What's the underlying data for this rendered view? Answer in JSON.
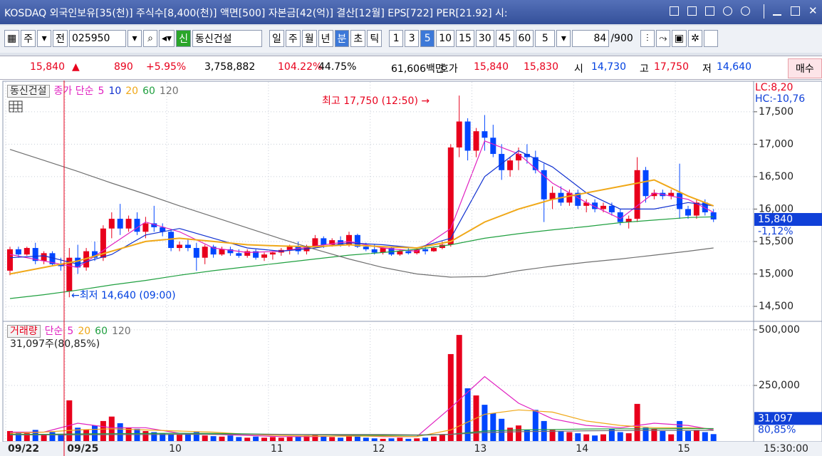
{
  "header": {
    "title": "KOSDAQ 외국인보유[35(천)] 주식수[8,400(천)] 액면[500] 자본금[42(억)] 결산[12월] EPS[722] PER[21.92] 시:"
  },
  "toolbar": {
    "period_type": "주",
    "range": "전",
    "code": "025950",
    "credit": "신",
    "name": "동신건설",
    "periods": [
      "일",
      "주",
      "월",
      "년",
      "분",
      "초",
      "틱"
    ],
    "minutes": [
      "1",
      "3",
      "5",
      "10",
      "15",
      "30",
      "45",
      "60"
    ],
    "select": "5",
    "count": "84",
    "max": "/900"
  },
  "info": {
    "price": "15,840",
    "arrow": "▲",
    "change": "890",
    "change_pct": "+5.95%",
    "volume": "3,758,882",
    "volume_ratio": "104.22%",
    "turnover": "44.75%",
    "amount": "61,606백만",
    "quote_label": "호가",
    "ask": "15,840",
    "bid": "15,830",
    "open_label": "시",
    "open": "14,730",
    "high_label": "고",
    "high": "17,750",
    "low_label": "저",
    "low": "14,640",
    "buy": "매수"
  },
  "chart_data": [
    {
      "type": "candlestick",
      "title": "동신건설",
      "ma_label": "종가 단순",
      "up_color": "#e8001c",
      "down_color": "#0046ff",
      "grid": true,
      "open": [
        15050,
        15380,
        15300,
        15400,
        15200,
        15320,
        15150,
        14730,
        15250,
        15100,
        15350,
        15250,
        15700,
        15850,
        15700,
        15850,
        15650,
        15780,
        15720,
        15650,
        15400,
        15450,
        15400,
        15250,
        15420,
        15300,
        15380,
        15320,
        15280,
        15350,
        15250,
        15300,
        15330,
        15370,
        15420,
        15350,
        15430,
        15550,
        15450,
        15520,
        15450,
        15600,
        15420,
        15380,
        15330,
        15400,
        15300,
        15350,
        15320,
        15380,
        15350,
        15400,
        15450,
        16950,
        17350,
        16900,
        17200,
        17100,
        16850,
        16600,
        16750,
        16850,
        16800,
        16600,
        16150,
        16250,
        16100,
        16250,
        16050,
        16100,
        16000,
        16050,
        15950,
        15800,
        15850,
        16600,
        16200,
        16250,
        16200,
        16250,
        16000,
        15900,
        16100,
        15950
      ],
      "high": [
        15420,
        15420,
        15420,
        15480,
        15350,
        15350,
        15250,
        15400,
        15450,
        15400,
        15500,
        15750,
        15950,
        16080,
        15900,
        15950,
        15880,
        16050,
        15780,
        15680,
        15500,
        15550,
        15480,
        15450,
        15450,
        15420,
        15420,
        15380,
        15380,
        15380,
        15330,
        15350,
        15400,
        15450,
        15500,
        15450,
        15600,
        15580,
        15550,
        15580,
        15650,
        15620,
        15480,
        15450,
        15420,
        15420,
        15380,
        15400,
        15400,
        15420,
        15420,
        15500,
        17000,
        17750,
        17400,
        17250,
        17450,
        17300,
        17000,
        16800,
        16950,
        17000,
        16900,
        16700,
        16350,
        16350,
        16300,
        16300,
        16150,
        16150,
        16100,
        16100,
        16000,
        15900,
        16800,
        16650,
        16300,
        16300,
        16300,
        16700,
        16050,
        16150,
        16150,
        16000
      ],
      "low": [
        14980,
        15250,
        15280,
        15150,
        15150,
        15120,
        15050,
        14640,
        15000,
        15050,
        15200,
        15200,
        15550,
        15600,
        15650,
        15600,
        15550,
        15650,
        15580,
        15350,
        15350,
        15350,
        15050,
        15150,
        15250,
        15280,
        15280,
        15250,
        15250,
        15220,
        15200,
        15220,
        15280,
        15300,
        15300,
        15300,
        15400,
        15400,
        15420,
        15420,
        15420,
        15400,
        15350,
        15300,
        15300,
        15280,
        15280,
        15300,
        15300,
        15300,
        15340,
        15380,
        15420,
        16800,
        16750,
        16800,
        16900,
        16800,
        16450,
        16500,
        16600,
        16700,
        16550,
        15800,
        16000,
        16050,
        16050,
        16000,
        15950,
        15950,
        15950,
        15900,
        15750,
        15700,
        15800,
        16100,
        16150,
        16150,
        16150,
        15850,
        15850,
        15850,
        15900,
        15800
      ],
      "close": [
        15380,
        15300,
        15400,
        15200,
        15320,
        15150,
        15120,
        15250,
        15100,
        15350,
        15250,
        15700,
        15850,
        15700,
        15850,
        15650,
        15780,
        15720,
        15650,
        15400,
        15450,
        15400,
        15250,
        15420,
        15300,
        15380,
        15320,
        15280,
        15350,
        15250,
        15300,
        15330,
        15370,
        15420,
        15350,
        15430,
        15550,
        15450,
        15520,
        15450,
        15600,
        15420,
        15380,
        15330,
        15400,
        15300,
        15350,
        15320,
        15380,
        15350,
        15400,
        15450,
        16950,
        17350,
        16900,
        17200,
        17100,
        16850,
        16600,
        16750,
        16850,
        16800,
        16600,
        16150,
        16250,
        16100,
        16250,
        16050,
        16100,
        16000,
        16050,
        15950,
        15800,
        15850,
        16600,
        16200,
        16250,
        16200,
        16250,
        16000,
        15900,
        16100,
        15950,
        15840
      ],
      "ylim": [
        14280,
        17960
      ],
      "yticks": [
        {
          "value": 14500,
          "label": "14,500"
        },
        {
          "value": 15000,
          "label": "15,000"
        },
        {
          "value": 15500,
          "label": "15,500"
        },
        {
          "value": 16000,
          "label": "16,000"
        },
        {
          "value": 16500,
          "label": "16,500"
        },
        {
          "value": 17000,
          "label": "17,000"
        },
        {
          "value": 17500,
          "label": "17,500"
        }
      ],
      "series": [
        {
          "name": "5",
          "color": "#e020c0",
          "x": [
            0,
            4,
            8,
            12,
            16,
            20,
            24,
            28,
            32,
            36,
            40,
            44,
            48,
            52,
            56,
            60,
            64,
            68,
            72,
            76,
            80,
            83
          ],
          "values": [
            15300,
            15200,
            15100,
            15450,
            15800,
            15650,
            15400,
            15330,
            15350,
            15430,
            15500,
            15400,
            15350,
            15700,
            17050,
            16850,
            16400,
            16100,
            15850,
            16250,
            16150,
            15950
          ]
        },
        {
          "name": "10",
          "color": "#1030d0",
          "x": [
            0,
            4,
            8,
            12,
            16,
            20,
            24,
            28,
            32,
            36,
            40,
            44,
            48,
            52,
            56,
            60,
            64,
            68,
            72,
            76,
            80,
            83
          ],
          "values": [
            15250,
            15280,
            15150,
            15300,
            15600,
            15700,
            15550,
            15400,
            15350,
            15400,
            15480,
            15450,
            15400,
            15550,
            16500,
            16900,
            16650,
            16250,
            16000,
            16000,
            16100,
            16050
          ]
        },
        {
          "name": "20",
          "color": "#f0a818",
          "x": [
            0,
            4,
            8,
            12,
            16,
            20,
            24,
            28,
            32,
            36,
            40,
            44,
            48,
            52,
            56,
            60,
            64,
            68,
            72,
            76,
            80,
            83
          ],
          "values": [
            15000,
            15100,
            15200,
            15350,
            15500,
            15550,
            15500,
            15450,
            15430,
            15420,
            15450,
            15420,
            15400,
            15500,
            15800,
            16000,
            16150,
            16250,
            16350,
            16450,
            16200,
            16050
          ]
        },
        {
          "name": "60",
          "color": "#20a040",
          "x": [
            0,
            4,
            8,
            12,
            16,
            20,
            24,
            28,
            32,
            36,
            40,
            44,
            48,
            52,
            56,
            60,
            64,
            68,
            72,
            76,
            80,
            83
          ],
          "values": [
            14620,
            14680,
            14750,
            14830,
            14900,
            14980,
            15050,
            15110,
            15170,
            15230,
            15290,
            15330,
            15380,
            15450,
            15550,
            15620,
            15680,
            15730,
            15790,
            15830,
            15870,
            15880
          ]
        },
        {
          "name": "120",
          "color": "#707070",
          "x": [
            0,
            4,
            8,
            12,
            16,
            20,
            24,
            28,
            32,
            36,
            40,
            44,
            48,
            52,
            56,
            60,
            64,
            68,
            72,
            76,
            80,
            83
          ],
          "values": [
            16920,
            16750,
            16580,
            16400,
            16230,
            16050,
            15880,
            15710,
            15540,
            15380,
            15230,
            15100,
            15000,
            14950,
            14960,
            15050,
            15120,
            15180,
            15230,
            15290,
            15350,
            15400
          ]
        }
      ],
      "annotations": [
        {
          "text": "최고 17,750 (12:50) →",
          "color": "#e8001c"
        },
        {
          "text": "←최저 14,640 (09:00)",
          "color": "#0040e0"
        }
      ],
      "last_price": {
        "value": 15840,
        "label": "15,840"
      },
      "last_change": "-1,12%",
      "lc": "LC:8,20",
      "hc": "HC:-10,76"
    },
    {
      "type": "bar",
      "title": "거래량",
      "ma_label": "단순",
      "summary": "31,097주(80,85%)",
      "categories": [
        "09/22",
        null,
        null,
        null,
        null,
        null,
        null,
        "09/25",
        null,
        null,
        null,
        null,
        null,
        null,
        null,
        null,
        null,
        null,
        null,
        "10",
        null,
        null,
        null,
        null,
        null,
        null,
        null,
        null,
        null,
        null,
        null,
        "11",
        null,
        null,
        null,
        null,
        null,
        null,
        null,
        null,
        null,
        null,
        null,
        "12",
        null,
        null,
        null,
        null,
        null,
        null,
        null,
        null,
        null,
        null,
        null,
        "13",
        null,
        null,
        null,
        null,
        null,
        null,
        null,
        null,
        null,
        null,
        null,
        "14",
        null,
        null,
        null,
        null,
        null,
        null,
        null,
        null,
        null,
        null,
        null,
        "15",
        null,
        null,
        null,
        null
      ],
      "values": [
        45000,
        40000,
        35000,
        50000,
        30000,
        40000,
        30000,
        183000,
        60000,
        50000,
        70000,
        90000,
        110000,
        80000,
        60000,
        55000,
        45000,
        40000,
        35000,
        30000,
        28000,
        35000,
        40000,
        25000,
        22000,
        20000,
        25000,
        18000,
        15000,
        20000,
        15000,
        18000,
        15000,
        18000,
        20000,
        25000,
        30000,
        20000,
        18000,
        15000,
        25000,
        20000,
        15000,
        12000,
        10000,
        12000,
        15000,
        10000,
        12000,
        15000,
        20000,
        30000,
        391000,
        477000,
        237000,
        205000,
        163000,
        125000,
        100000,
        60000,
        70000,
        50000,
        140000,
        90000,
        50000,
        45000,
        40000,
        35000,
        30000,
        25000,
        30000,
        55000,
        40000,
        35000,
        167000,
        60000,
        55000,
        45000,
        30000,
        90000,
        45000,
        50000,
        40000,
        31097
      ],
      "ylim": [
        0,
        535000
      ],
      "yticks": [
        {
          "value": 250000,
          "label": "250,000"
        },
        {
          "value": 500000,
          "label": "500,000"
        }
      ],
      "series": [
        {
          "name": "5",
          "color": "#e020c0",
          "x": [
            0,
            4,
            8,
            12,
            16,
            20,
            24,
            28,
            32,
            36,
            40,
            44,
            48,
            52,
            56,
            60,
            64,
            68,
            72,
            76,
            80,
            83
          ],
          "values": [
            40000,
            40000,
            80000,
            60000,
            60000,
            35000,
            30000,
            25000,
            20000,
            20000,
            25000,
            20000,
            20000,
            150000,
            290000,
            170000,
            100000,
            70000,
            60000,
            80000,
            70000,
            50000
          ]
        },
        {
          "name": "20",
          "color": "#f0a818",
          "x": [
            0,
            4,
            8,
            12,
            16,
            20,
            24,
            28,
            32,
            36,
            40,
            44,
            48,
            52,
            56,
            60,
            64,
            68,
            72,
            76,
            80,
            83
          ],
          "values": [
            35000,
            40000,
            50000,
            55000,
            50000,
            45000,
            40000,
            30000,
            25000,
            22000,
            22000,
            22000,
            20000,
            50000,
            120000,
            140000,
            130000,
            90000,
            70000,
            60000,
            60000,
            55000
          ]
        },
        {
          "name": "60",
          "color": "#20a040",
          "x": [
            0,
            4,
            8,
            12,
            16,
            20,
            24,
            28,
            32,
            36,
            40,
            44,
            48,
            52,
            56,
            60,
            64,
            68,
            72,
            76,
            80,
            83
          ],
          "values": [
            30000,
            30000,
            32000,
            33000,
            34000,
            35000,
            34000,
            32000,
            30000,
            28000,
            27000,
            26000,
            26000,
            30000,
            45000,
            50000,
            52000,
            54000,
            55000,
            55000,
            56000,
            56000
          ]
        },
        {
          "name": "120",
          "color": "#707070",
          "x": [
            0,
            4,
            8,
            12,
            16,
            20,
            24,
            28,
            32,
            36,
            40,
            44,
            48,
            52,
            56,
            60,
            64,
            68,
            72,
            76,
            80,
            83
          ],
          "values": [
            28000,
            28000,
            28000,
            29000,
            29000,
            30000,
            30000,
            30000,
            30000,
            29000,
            29000,
            29000,
            28000,
            30000,
            38000,
            42000,
            44000,
            46000,
            47000,
            48000,
            48000,
            48000
          ]
        }
      ],
      "last_value": {
        "value": 31097,
        "label": "31,097"
      },
      "last_ratio": "80,85%",
      "end_time": "15:30:00"
    }
  ]
}
